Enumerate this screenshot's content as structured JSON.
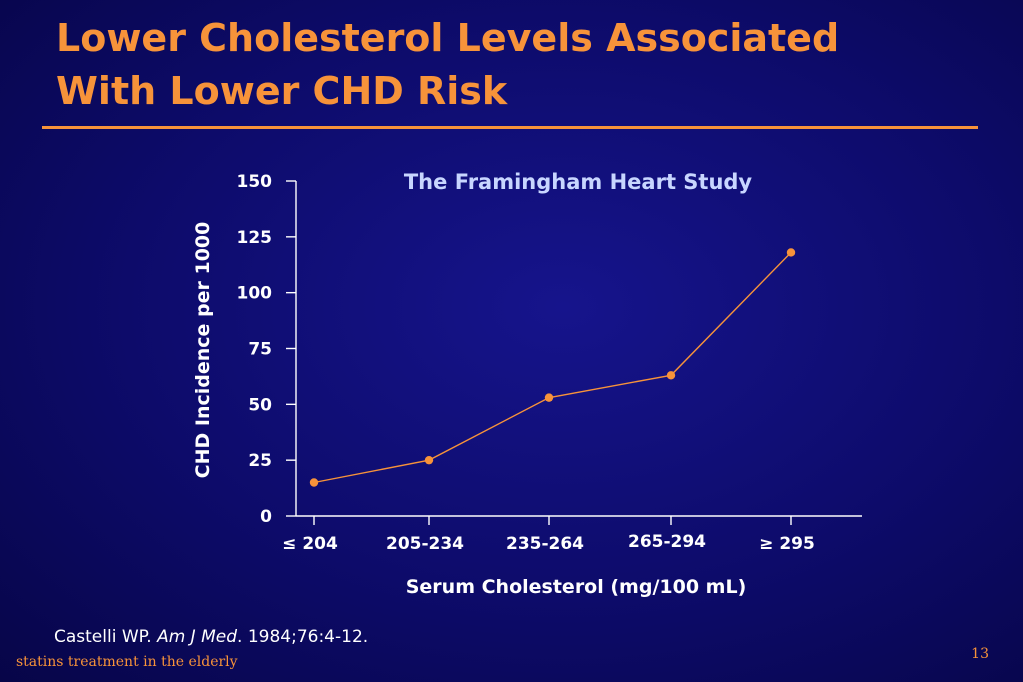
{
  "slide": {
    "title_line1": "Lower Cholesterol Levels Associated",
    "title_line2": "With Lower CHD Risk",
    "citation_author": "Castelli WP.",
    "citation_journal": "Am J Med",
    "citation_rest": ". 1984;76:4-12.",
    "footer_left": "statins treatment in the elderly",
    "page_number": "13",
    "colors": {
      "background": "#0d0b6a",
      "accent": "#f7933a",
      "chart_title": "#c8d6ff",
      "text": "#ffffff"
    }
  },
  "chart_data": {
    "type": "line",
    "title": "The Framingham Heart Study",
    "xlabel": "Serum Cholesterol (mg/100 mL)",
    "ylabel": "CHD Incidence per 1000",
    "categories": [
      "≤ 204",
      "205-234",
      "235-264",
      "265-294",
      "≥ 295"
    ],
    "series": [
      {
        "values": [
          15,
          25,
          53,
          63,
          118
        ]
      }
    ],
    "ylim": [
      0,
      150
    ],
    "yticks": [
      "0",
      "25",
      "50",
      "75",
      "100",
      "125",
      "150"
    ],
    "grid": false,
    "legend": "none"
  }
}
